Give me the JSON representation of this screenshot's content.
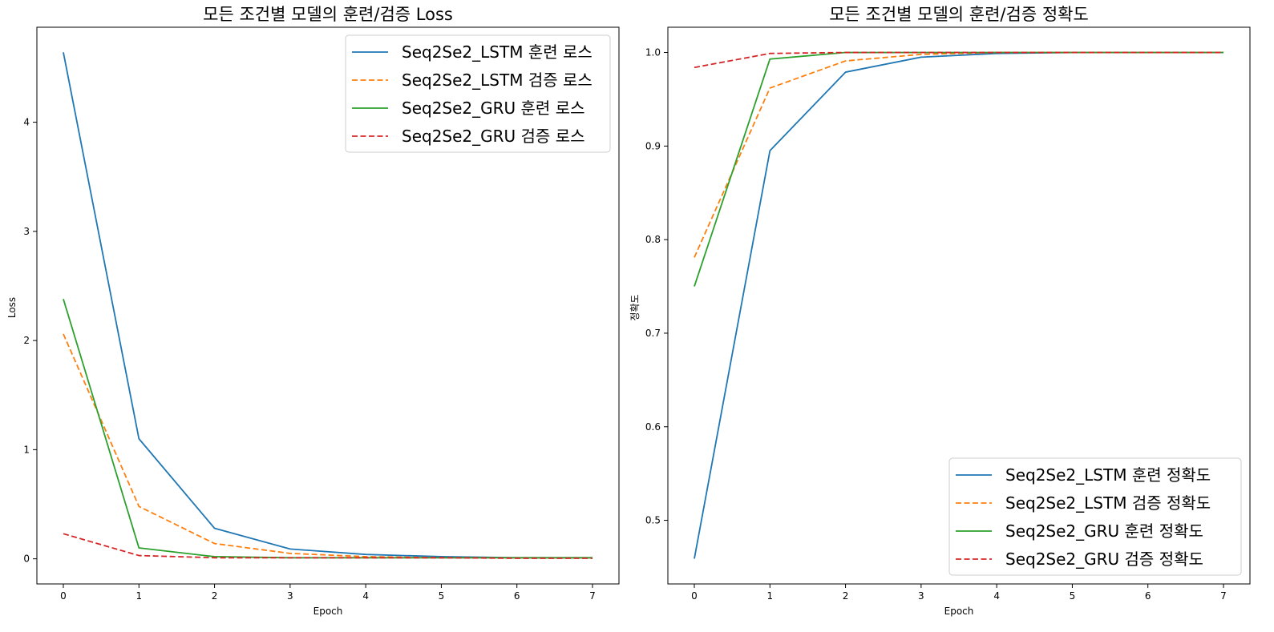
{
  "chart_data": [
    {
      "type": "line",
      "title": "모든 조건별 모델의 훈련/검증 Loss",
      "xlabel": "Epoch",
      "ylabel": "Loss",
      "x": [
        0,
        1,
        2,
        3,
        4,
        5,
        6,
        7
      ],
      "xlim": [
        -0.35,
        7.35
      ],
      "ylim": [
        -0.23,
        4.87
      ],
      "xticks": [
        "0",
        "1",
        "2",
        "3",
        "4",
        "5",
        "6",
        "7"
      ],
      "yticks": [
        0,
        1,
        2,
        3,
        4
      ],
      "legend": "upper-right",
      "grid": false,
      "series": [
        {
          "name": "Seq2Se2_LSTM 훈련 로스",
          "color": "#1f77b4",
          "dash": "solid",
          "values": [
            4.64,
            1.1,
            0.28,
            0.09,
            0.04,
            0.02,
            0.01,
            0.01
          ]
        },
        {
          "name": "Seq2Se2_LSTM 검증 로스",
          "color": "#ff7f0e",
          "dash": "dashed",
          "values": [
            2.06,
            0.48,
            0.14,
            0.05,
            0.02,
            0.01,
            0.01,
            0.01
          ]
        },
        {
          "name": "Seq2Se2_GRU 훈련 로스",
          "color": "#2ca02c",
          "dash": "solid",
          "values": [
            2.38,
            0.1,
            0.02,
            0.01,
            0.01,
            0.01,
            0.01,
            0.01
          ]
        },
        {
          "name": "Seq2Se2_GRU 검증 로스",
          "color": "#d62728",
          "dash": "dashed",
          "values": [
            0.23,
            0.03,
            0.01,
            0.01,
            0.01,
            0.01,
            0.005,
            0.005
          ]
        }
      ]
    },
    {
      "type": "line",
      "title": "모든 조건별 모델의 훈련/검증 정확도",
      "xlabel": "Epoch",
      "ylabel": "정확도",
      "x": [
        0,
        1,
        2,
        3,
        4,
        5,
        6,
        7
      ],
      "xlim": [
        -0.35,
        7.35
      ],
      "ylim": [
        0.432,
        1.027
      ],
      "xticks": [
        "0",
        "1",
        "2",
        "3",
        "4",
        "5",
        "6",
        "7"
      ],
      "yticks": [
        "0.5",
        "0.6",
        "0.7",
        "0.8",
        "0.9",
        "1.0"
      ],
      "legend": "lower-right",
      "grid": false,
      "series": [
        {
          "name": "Seq2Se2_LSTM 훈련 정확도",
          "color": "#1f77b4",
          "dash": "solid",
          "values": [
            0.459,
            0.895,
            0.979,
            0.995,
            0.999,
            1.0,
            1.0,
            1.0
          ]
        },
        {
          "name": "Seq2Se2_LSTM 검증 정확도",
          "color": "#ff7f0e",
          "dash": "dashed",
          "values": [
            0.781,
            0.962,
            0.991,
            0.998,
            1.0,
            1.0,
            1.0,
            1.0
          ]
        },
        {
          "name": "Seq2Se2_GRU 훈련 정확도",
          "color": "#2ca02c",
          "dash": "solid",
          "values": [
            0.75,
            0.993,
            1.0,
            1.0,
            1.0,
            1.0,
            1.0,
            1.0
          ]
        },
        {
          "name": "Seq2Se2_GRU 검증 정확도",
          "color": "#d62728",
          "dash": "dashed",
          "values": [
            0.984,
            0.999,
            1.0,
            1.0,
            1.0,
            1.0,
            1.0,
            1.0
          ]
        }
      ]
    }
  ]
}
